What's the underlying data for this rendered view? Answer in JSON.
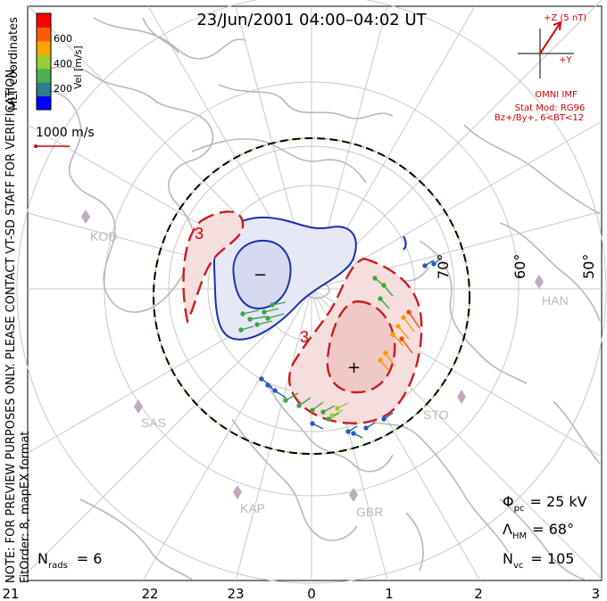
{
  "title": "23/Jun/2001  04:00–04:02  UT",
  "coords_label": "MLT coordinates",
  "watermark": "NOTE: FOR PREVIEW PURPOSES ONLY. PLEASE CONTACT VT-SD STAFF FOR VERIFICATION.",
  "fit_info": "FitOrder: 8, mapEX format",
  "vel_scale": {
    "label": "Vel [m/s]",
    "ticks": [
      "200",
      "400",
      "600"
    ],
    "colors": [
      "#0000ff",
      "#2e7d8c",
      "#4caf50",
      "#9acd32",
      "#ffa500",
      "#ff5a00",
      "#ff0000"
    ]
  },
  "ref_vector": {
    "label": "1000 m/s"
  },
  "imf": {
    "z_label": "+Z (5 nT)",
    "y_label": "+Y",
    "source": "OMNI IMF",
    "model": "Stat Mod: RG96",
    "condition": "Bz+/By+, 6<BT<12"
  },
  "stations": [
    "KOD",
    "HAN",
    "SAS",
    "STO",
    "KAP",
    "GBR"
  ],
  "lat_labels": [
    "70°",
    "60°",
    "50°"
  ],
  "mlt_labels": [
    "21",
    "22",
    "23",
    "0",
    "1",
    "2",
    "3"
  ],
  "contours": {
    "neg_label": "−",
    "pos_label": "+",
    "label3a": "3",
    "label3b": "3"
  },
  "stats": {
    "phi_symbol": "Φ",
    "phi_sub": "pc",
    "phi_value": "= 25 kV",
    "lambda_symbol": "Λ",
    "lambda_sub": "HM",
    "lambda_value": "= 68°",
    "nvc_symbol": "N",
    "nvc_sub": "vc",
    "nvc_value": "= 105",
    "nrads_symbol": "N",
    "nrads_sub": "rads",
    "nrads_value": "= 6"
  },
  "colors": {
    "neg_contour": "#1a2fb0",
    "pos_contour": "#c81e1e",
    "coast": "#b8b8b8",
    "hmb": "#000000"
  }
}
